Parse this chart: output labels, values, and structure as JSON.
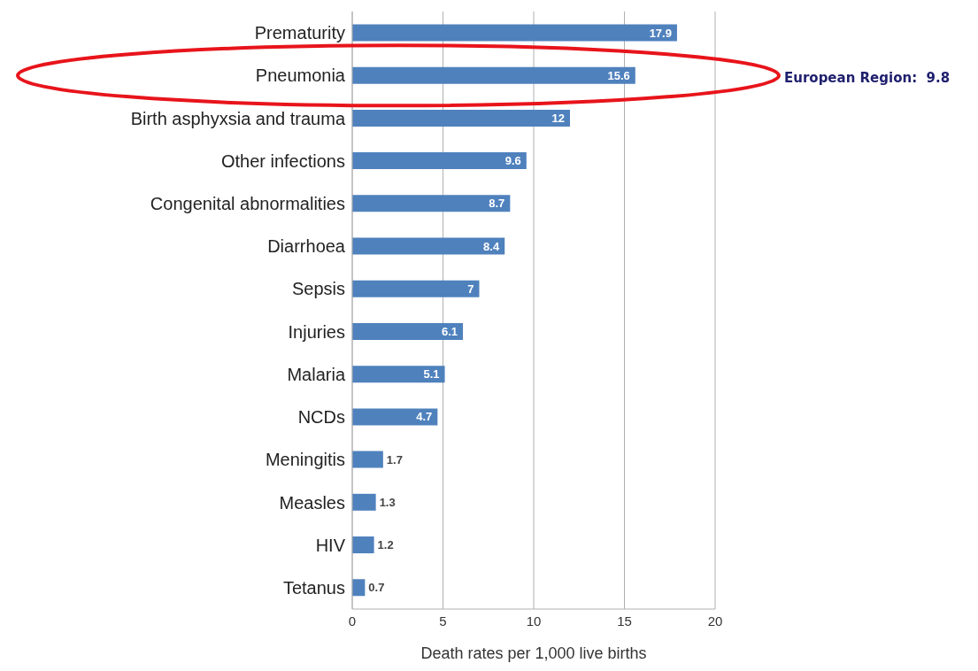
{
  "chart_data": {
    "type": "bar",
    "orientation": "horizontal",
    "xlabel": "Death rates per 1,000 live births",
    "categories": [
      "Prematurity",
      "Pneumonia",
      "Birth asphyxsia and trauma",
      "Other infections",
      "Congenital abnormalities",
      "Diarrhoea",
      "Sepsis",
      "Injuries",
      "Malaria",
      "NCDs",
      "Meningitis",
      "Measles",
      "HIV",
      "Tetanus"
    ],
    "values": [
      17.9,
      15.6,
      12,
      9.6,
      8.7,
      8.4,
      7,
      6.1,
      5.1,
      4.7,
      1.7,
      1.3,
      1.2,
      0.7
    ],
    "color": "#4f81bd",
    "xlim": [
      0,
      20
    ],
    "xticks": [
      0,
      5,
      10,
      15,
      20
    ],
    "grid": "x",
    "data_labels": true,
    "annotations": [
      "European Region:  9.8"
    ]
  }
}
